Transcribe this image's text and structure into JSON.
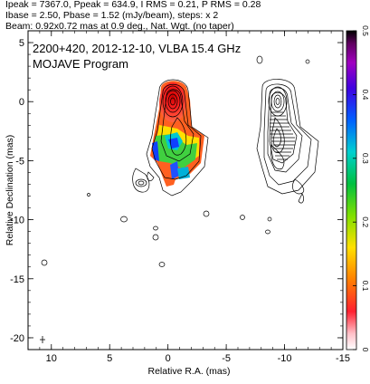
{
  "header_lines": [
    "Ipeak = 7367.0, Ppeak = 634.9, I RMS = 0.21, P RMS = 0.28",
    "Ibase = 2.50, Pbase = 1.52 (mJy/beam), steps: x 2",
    "Beam: 0.92x0.72 mas at 0.9 deg., Nat. Wgt. (no taper)"
  ],
  "plot_title": "2200+420, 2012-12-10, VLBA 15.4 GHz",
  "plot_subtitle": "MOJAVE Program",
  "chart_data": {
    "type": "heatmap",
    "xlabel": "Relative R.A. (mas)",
    "ylabel": "Relative Declination (mas)",
    "xlim": [
      12,
      -15
    ],
    "ylim": [
      -21,
      6
    ],
    "x_ticks": [
      "10",
      "5",
      "0",
      "-5",
      "-10",
      "-15"
    ],
    "y_ticks": [
      "5",
      "0",
      "-5",
      "-10",
      "-15",
      "-20"
    ],
    "colorbar": {
      "range": [
        0,
        0.5
      ],
      "tick_labels": [
        "0",
        "0.1",
        "0.2",
        "0.3",
        "0.4",
        "0.5"
      ]
    },
    "panels": [
      "total intensity contours with fractional polarization color",
      "total intensity contours with polarization vectors"
    ],
    "beam": {
      "major_mas": 0.92,
      "minor_mas": 0.72,
      "pa_deg": 0.9
    }
  }
}
